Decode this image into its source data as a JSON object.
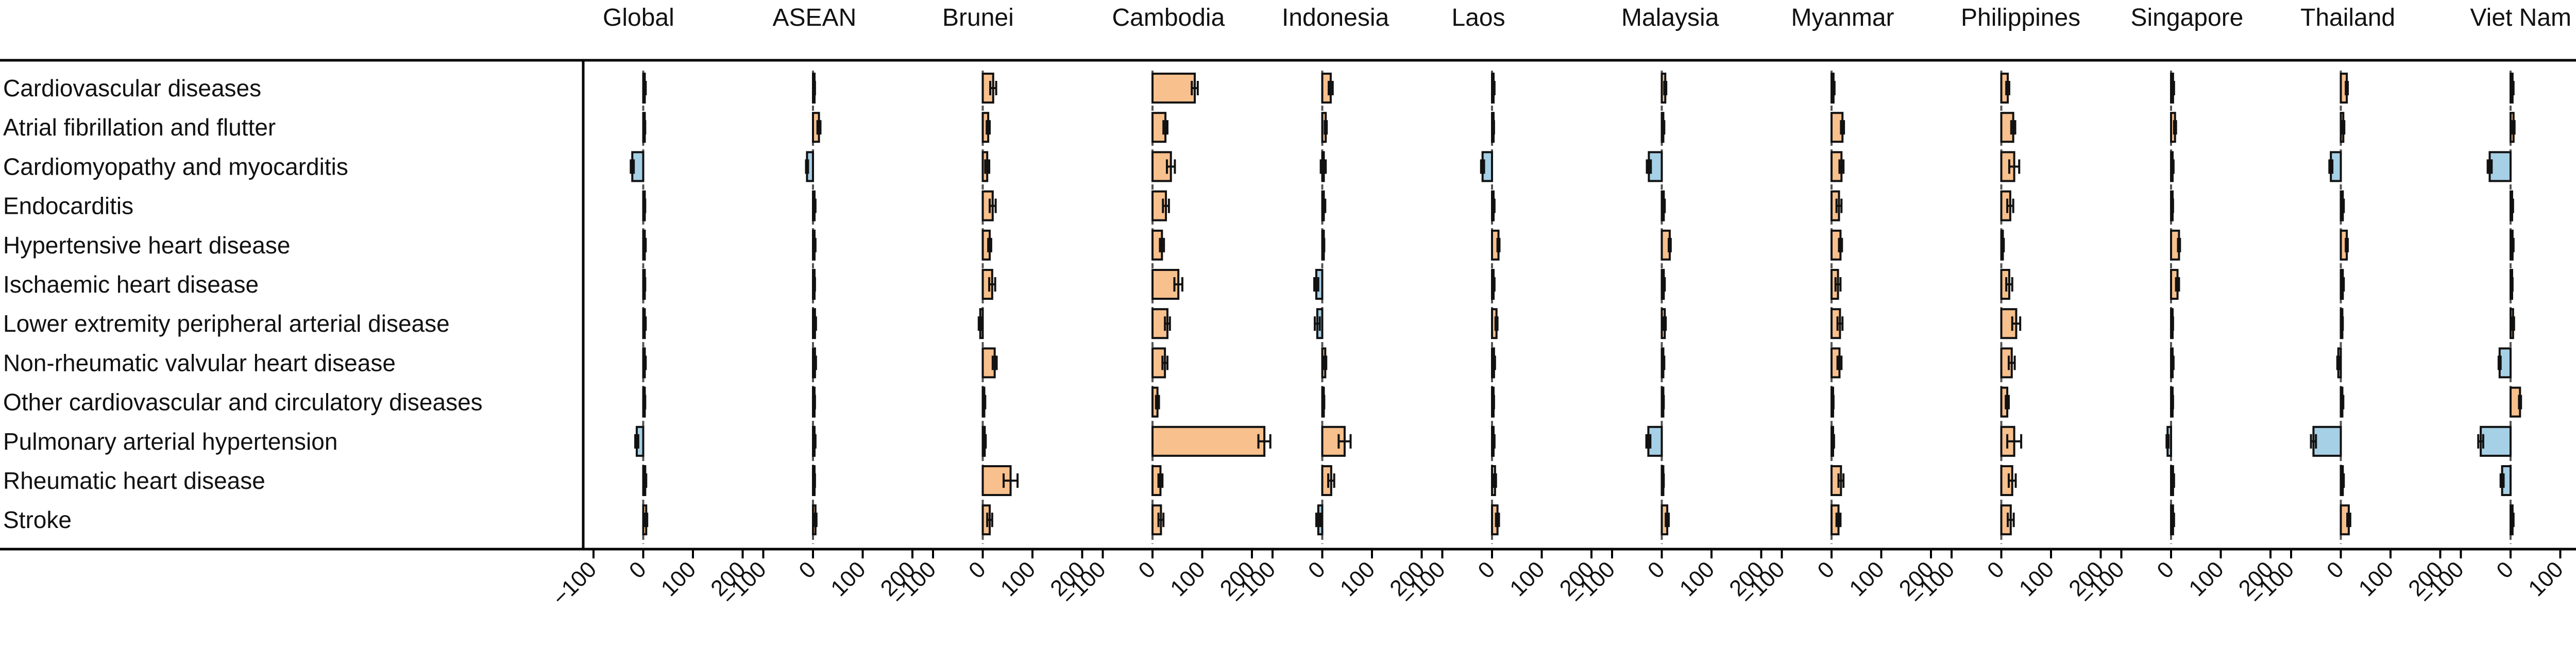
{
  "chart_data": {
    "type": "bar",
    "orientation": "horizontal",
    "panels": [
      "Global",
      "ASEAN",
      "Brunei",
      "Cambodia",
      "Indonesia",
      "Laos",
      "Malaysia",
      "Myanmar",
      "Philippines",
      "Singapore",
      "Thailand",
      "Viet Nam"
    ],
    "categories": [
      "Cardiovascular diseases",
      "Atrial fibrillation and flutter",
      "Cardiomyopathy and myocarditis",
      "Endocarditis",
      "Hypertensive heart disease",
      "Ischaemic heart disease",
      "Lower extremity peripheral arterial disease",
      "Non-rheumatic valvular heart disease",
      "Other cardiovascular and circulatory diseases",
      "Pulmonary arterial hypertension",
      "Rheumatic heart disease",
      "Stroke"
    ],
    "xlim": [
      -100,
      200
    ],
    "xticks": [
      -100,
      0,
      100,
      200
    ],
    "xtick_labels": [
      "−100",
      "0",
      "100",
      "200"
    ],
    "grid": false,
    "legend": "none",
    "colors": {
      "positive": "#f7c08d",
      "negative": "#a6d0e6",
      "highlight": "#c48c76",
      "reference": "#555555"
    },
    "values": [
      [
        3,
        2,
        21,
        85,
        17,
        3,
        7,
        4,
        13,
        4,
        12,
        4
      ],
      [
        2,
        12,
        11,
        26,
        7,
        2,
        3,
        22,
        24,
        8,
        5,
        6
      ],
      [
        -22,
        -12,
        9,
        37,
        2,
        -19,
        -26,
        20,
        26,
        3,
        -20,
        -42
      ],
      [
        2,
        3,
        20,
        27,
        3,
        3,
        4,
        15,
        18,
        2,
        4,
        3
      ],
      [
        3,
        3,
        14,
        19,
        2,
        13,
        16,
        18,
        3,
        16,
        12,
        4
      ],
      [
        2,
        2,
        19,
        52,
        -12,
        3,
        4,
        13,
        16,
        13,
        4,
        2
      ],
      [
        3,
        4,
        -5,
        30,
        -10,
        9,
        6,
        17,
        30,
        2,
        2,
        5
      ],
      [
        3,
        4,
        24,
        25,
        6,
        4,
        3,
        16,
        21,
        3,
        -5,
        -22
      ],
      [
        2,
        2,
        3,
        10,
        2,
        2,
        2,
        2,
        12,
        2,
        3,
        19
      ],
      [
        -13,
        3,
        4,
        225,
        45,
        3,
        -27,
        3,
        26,
        -7,
        -55,
        -60
      ],
      [
        4,
        2,
        56,
        16,
        18,
        6,
        2,
        19,
        22,
        4,
        4,
        -17
      ],
      [
        6,
        5,
        14,
        17,
        -8,
        11,
        11,
        14,
        19,
        4,
        16,
        4
      ]
    ],
    "errors": [
      [
        2,
        2,
        6,
        6,
        4,
        2,
        2,
        2,
        3,
        2,
        2,
        2
      ],
      [
        2,
        3,
        3,
        4,
        2,
        2,
        2,
        3,
        4,
        2,
        2,
        2
      ],
      [
        3,
        2,
        4,
        8,
        5,
        3,
        4,
        4,
        10,
        2,
        3,
        4
      ],
      [
        2,
        2,
        6,
        6,
        3,
        2,
        2,
        5,
        6,
        2,
        2,
        2
      ],
      [
        2,
        2,
        3,
        4,
        2,
        2,
        2,
        3,
        2,
        2,
        2,
        2
      ],
      [
        2,
        2,
        6,
        8,
        4,
        2,
        2,
        5,
        6,
        3,
        2,
        2
      ],
      [
        2,
        2,
        3,
        5,
        5,
        2,
        2,
        5,
        8,
        2,
        2,
        2
      ],
      [
        2,
        2,
        4,
        5,
        2,
        2,
        2,
        4,
        6,
        2,
        2,
        2
      ],
      [
        2,
        2,
        2,
        3,
        2,
        2,
        2,
        2,
        3,
        2,
        2,
        2
      ],
      [
        3,
        2,
        2,
        12,
        12,
        2,
        4,
        2,
        14,
        2,
        5,
        5
      ],
      [
        2,
        2,
        14,
        4,
        6,
        2,
        2,
        5,
        7,
        2,
        2,
        3
      ],
      [
        2,
        2,
        5,
        5,
        4,
        3,
        3,
        4,
        6,
        2,
        3,
        2
      ]
    ],
    "highlight": [
      {
        "panel": 9,
        "category": 3
      }
    ]
  }
}
